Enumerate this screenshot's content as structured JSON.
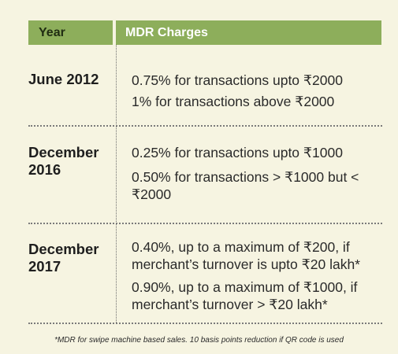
{
  "header": {
    "year": "Year",
    "charges": "MDR Charges"
  },
  "rows": [
    {
      "year": "June 2012",
      "charges": [
        "0.75% for transactions upto ₹2000",
        "1% for transactions above ₹2000"
      ]
    },
    {
      "year": "December 2016",
      "charges": [
        "0.25% for transactions upto ₹1000",
        "0.50% for transactions > ₹1000 but < ₹2000"
      ]
    },
    {
      "year": "December 2017",
      "charges": [
        "0.40%, up to a maximum of ₹200, if merchant’s turnover is upto ₹20 lakh*",
        "0.90%, up to a maximum of ₹1000, if merchant’s turnover > ₹20 lakh*"
      ]
    }
  ],
  "footnote": "*MDR for swipe machine based sales. 10 basis points reduction if QR code is used",
  "colors": {
    "header_bg": "#8dae5b",
    "page_bg": "#f6f4e1"
  }
}
